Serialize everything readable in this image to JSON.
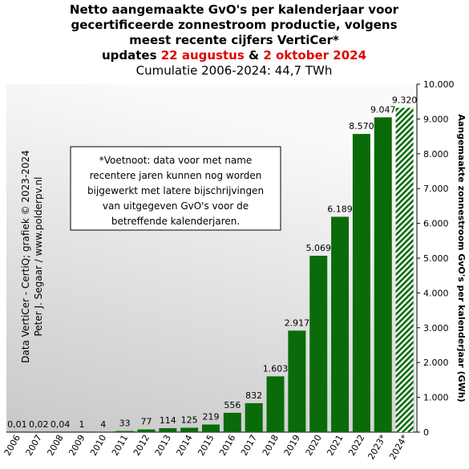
{
  "chart_data": {
    "type": "bar",
    "title_lines": [
      "Netto aangemaakte GvO's per kalenderjaar voor",
      "gecertificeerde zonnestroom productie, volgens",
      "meest recente cijfers VertiCer*"
    ],
    "title_updates": [
      "updates ",
      "22 augustus",
      " & ",
      "2 oktober 2024"
    ],
    "subtitle": "Cumulatie 2006-2024: 44,7 TWh",
    "y_label": "Aangemaakte zonnestroom GvO's per kalenderjaar (GWh)",
    "source_lines": [
      "Data VertiCer - CertiQ; grafiek © 2023-2024",
      "Peter J. Segaar / www.polderpv.nl"
    ],
    "footnote_lines": [
      "*Voetnoot: data voor met name",
      "recentere jaren kunnen nog worden",
      "bijgewerkt met latere bijschrijvingen",
      "van uitgegeven GvO's voor de",
      "betreffende kalenderjaren."
    ],
    "categories": [
      "2006",
      "2007",
      "2008",
      "2009",
      "2010",
      "2011",
      "2012",
      "2013",
      "2014",
      "2015",
      "2016",
      "2017",
      "2018",
      "2019",
      "2020",
      "2021",
      "2022",
      "2023*",
      "2024*"
    ],
    "values": [
      0.01,
      0.02,
      0.04,
      1,
      4,
      33,
      77,
      114,
      125,
      219,
      556,
      832,
      1603,
      2917,
      5069,
      6189,
      8570,
      9047,
      9320
    ],
    "value_labels": [
      "0,01",
      "0,02",
      "0,04",
      "1",
      "4",
      "33",
      "77",
      "114",
      "125",
      "219",
      "556",
      "832",
      "1.603",
      "2.917",
      "5.069",
      "6.189",
      "8.570",
      "9.047",
      "9.320"
    ],
    "hatched": [
      false,
      false,
      false,
      false,
      false,
      false,
      false,
      false,
      false,
      false,
      false,
      false,
      false,
      false,
      false,
      false,
      false,
      false,
      true
    ],
    "color": "#0b6b0b",
    "ylim": [
      0,
      10000
    ],
    "yticks": [
      0,
      {
        "value": 1000,
        "label": "1.000"
      },
      {
        "value": 2000,
        "label": "2.000"
      },
      {
        "value": 3000,
        "label": "3.000"
      },
      {
        "value": 4000,
        "label": "4.000"
      },
      {
        "value": 5000,
        "label": "5.000"
      },
      {
        "value": 6000,
        "label": "6.000"
      },
      {
        "value": 7000,
        "label": "7.000"
      },
      {
        "value": 8000,
        "label": "8.000"
      },
      {
        "value": 9000,
        "label": "9.000"
      },
      {
        "value": 10000,
        "label": "10.000"
      }
    ],
    "grid": false
  }
}
